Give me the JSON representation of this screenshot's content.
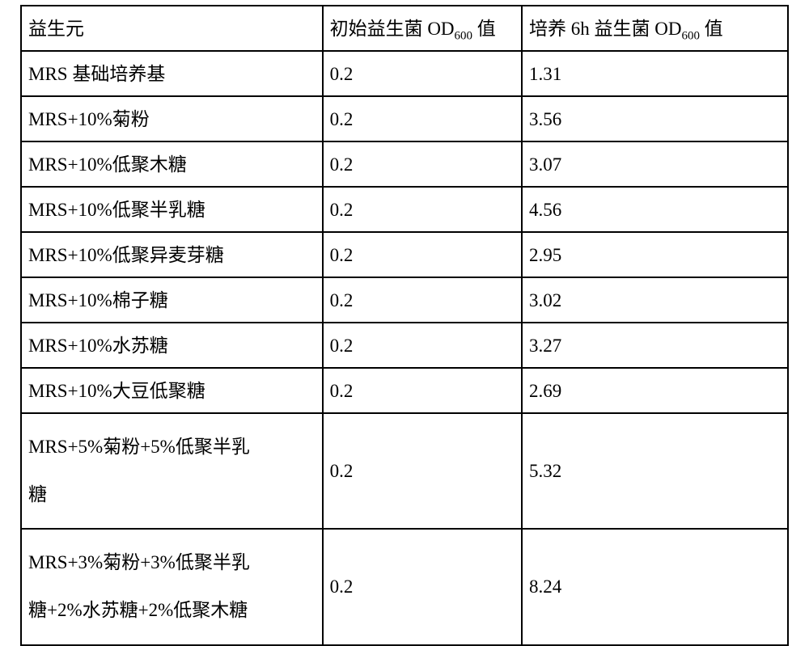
{
  "table": {
    "border_color": "#000000",
    "background_color": "#ffffff",
    "font_family": "SimSun",
    "font_size_pt": 17,
    "columns": [
      {
        "key": "prebiotic",
        "header_html": "益生元",
        "width_pct": 39.3,
        "align": "left"
      },
      {
        "key": "od_initial",
        "header_html": "初始益生菌 OD<sub>600</sub> 值",
        "width_pct": 26.0,
        "align": "left"
      },
      {
        "key": "od_6h",
        "header_html": "培养 6h 益生菌 OD<sub>600</sub> 值",
        "width_pct": 34.7,
        "align": "left"
      }
    ],
    "rows": [
      {
        "prebiotic": "MRS 基础培养基",
        "od_initial": "0.2",
        "od_6h": "1.31",
        "tall": false
      },
      {
        "prebiotic": "MRS+10%菊粉",
        "od_initial": "0.2",
        "od_6h": "3.56",
        "tall": false
      },
      {
        "prebiotic": "MRS+10%低聚木糖",
        "od_initial": "0.2",
        "od_6h": "3.07",
        "tall": false
      },
      {
        "prebiotic": "MRS+10%低聚半乳糖",
        "od_initial": "0.2",
        "od_6h": "4.56",
        "tall": false
      },
      {
        "prebiotic": "MRS+10%低聚异麦芽糖",
        "od_initial": "0.2",
        "od_6h": "2.95",
        "tall": false
      },
      {
        "prebiotic": "MRS+10%棉子糖",
        "od_initial": "0.2",
        "od_6h": "3.02",
        "tall": false
      },
      {
        "prebiotic": "MRS+10%水苏糖",
        "od_initial": "0.2",
        "od_6h": "3.27",
        "tall": false
      },
      {
        "prebiotic": "MRS+10%大豆低聚糖",
        "od_initial": "0.2",
        "od_6h": "2.69",
        "tall": false
      },
      {
        "prebiotic": "MRS+5%菊粉+5%低聚半乳<br>糖",
        "od_initial": "0.2",
        "od_6h": "5.32",
        "tall": true
      },
      {
        "prebiotic": "MRS+3%菊粉+3%低聚半乳<br>糖+2%水苏糖+2%低聚木糖",
        "od_initial": "0.2",
        "od_6h": "8.24",
        "tall": true
      }
    ]
  }
}
